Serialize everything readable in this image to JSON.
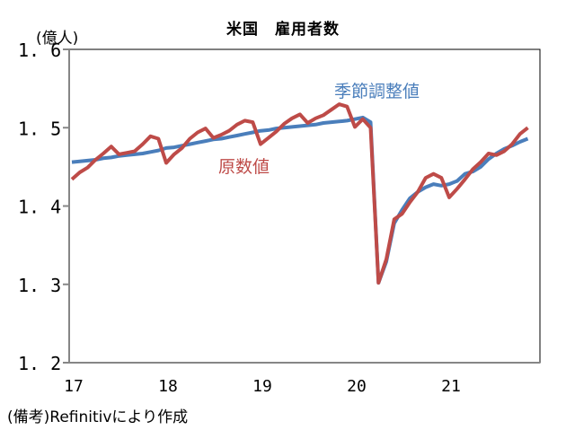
{
  "header": {
    "title": "米国　雇用者数",
    "unit": "(億人)"
  },
  "footer": {
    "note": "(備考)Refinitivにより作成"
  },
  "labels": {
    "sa": "季節調整値",
    "raw": "原数値"
  },
  "colors": {
    "sa": "#4a7ebb",
    "raw": "#be4b48",
    "axis": "#868686",
    "frame": "#000000"
  },
  "chart_data": {
    "type": "line",
    "title": "米国　雇用者数",
    "xlabel": "",
    "ylabel": "(億人)",
    "ylim": [
      1.2,
      1.6
    ],
    "yticks": [
      "1.2",
      "1.3",
      "1.4",
      "1.5",
      "1.6"
    ],
    "xticks": [
      "17",
      "18",
      "19",
      "20",
      "21"
    ],
    "grid": false,
    "legend": "inline labels",
    "x_start": "2017-01",
    "x_freq": "monthly",
    "series": [
      {
        "name": "季節調整値",
        "color": "#4a7ebb",
        "values": [
          1.456,
          1.457,
          1.458,
          1.459,
          1.461,
          1.462,
          1.464,
          1.465,
          1.466,
          1.467,
          1.469,
          1.471,
          1.474,
          1.475,
          1.477,
          1.479,
          1.481,
          1.483,
          1.485,
          1.486,
          1.488,
          1.49,
          1.492,
          1.494,
          1.496,
          1.497,
          1.499,
          1.5,
          1.501,
          1.502,
          1.503,
          1.504,
          1.506,
          1.507,
          1.508,
          1.509,
          1.511,
          1.513,
          1.507,
          1.302,
          1.329,
          1.378,
          1.395,
          1.41,
          1.418,
          1.424,
          1.428,
          1.426,
          1.428,
          1.432,
          1.441,
          1.444,
          1.45,
          1.46,
          1.467,
          1.473,
          1.477,
          1.482,
          1.486
        ]
      },
      {
        "name": "原数値",
        "color": "#be4b48",
        "values": [
          1.434,
          1.443,
          1.449,
          1.459,
          1.467,
          1.476,
          1.466,
          1.468,
          1.47,
          1.479,
          1.489,
          1.486,
          1.455,
          1.466,
          1.474,
          1.486,
          1.494,
          1.499,
          1.487,
          1.491,
          1.496,
          1.504,
          1.509,
          1.507,
          1.479,
          1.487,
          1.495,
          1.505,
          1.512,
          1.517,
          1.506,
          1.512,
          1.516,
          1.523,
          1.53,
          1.527,
          1.501,
          1.511,
          1.5,
          1.302,
          1.332,
          1.383,
          1.39,
          1.405,
          1.418,
          1.436,
          1.441,
          1.436,
          1.411,
          1.422,
          1.434,
          1.447,
          1.456,
          1.467,
          1.465,
          1.47,
          1.479,
          1.492,
          1.5
        ]
      }
    ]
  }
}
